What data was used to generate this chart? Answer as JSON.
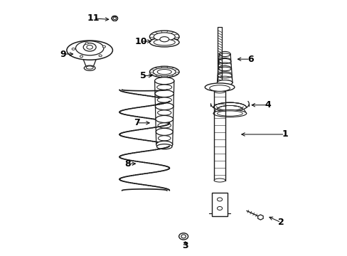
{
  "background_color": "#ffffff",
  "line_color": "#1a1a1a",
  "label_color": "#000000",
  "fig_width": 4.89,
  "fig_height": 3.6,
  "dpi": 100,
  "label_fontsize": 9,
  "arrow_lw": 0.7,
  "draw_lw": 1.0,
  "parts_labels": {
    "1": [
      0.935,
      0.475,
      0.755,
      0.475
    ],
    "2": [
      0.92,
      0.13,
      0.865,
      0.155
    ],
    "3": [
      0.545,
      0.038,
      0.545,
      0.065
    ],
    "4": [
      0.87,
      0.59,
      0.795,
      0.59
    ],
    "5": [
      0.38,
      0.705,
      0.425,
      0.705
    ],
    "6": [
      0.8,
      0.77,
      0.74,
      0.77
    ],
    "7": [
      0.355,
      0.52,
      0.415,
      0.52
    ],
    "8": [
      0.32,
      0.36,
      0.36,
      0.36
    ],
    "9": [
      0.065,
      0.79,
      0.115,
      0.79
    ],
    "10": [
      0.37,
      0.84,
      0.42,
      0.84
    ],
    "11": [
      0.185,
      0.93,
      0.255,
      0.925
    ]
  }
}
